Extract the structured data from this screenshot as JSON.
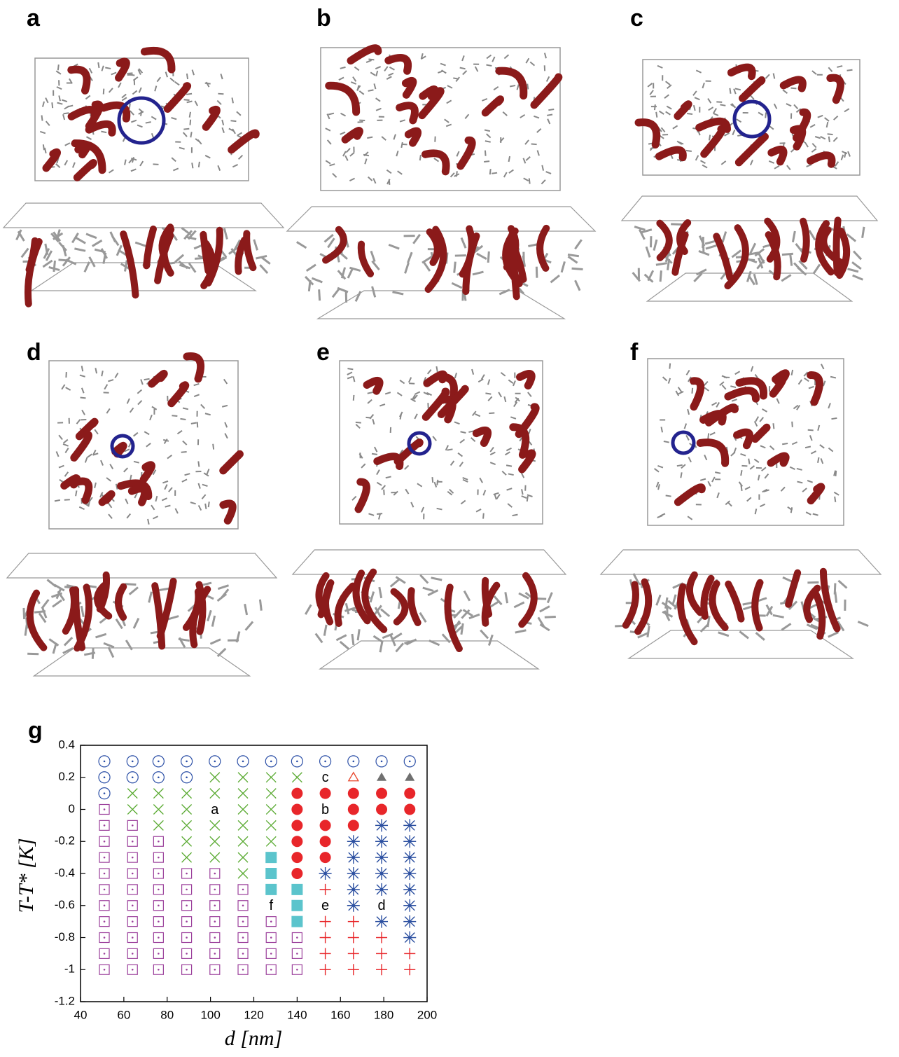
{
  "panels": [
    {
      "label": "a"
    },
    {
      "label": "b"
    },
    {
      "label": "c"
    },
    {
      "label": "d"
    },
    {
      "label": "e"
    },
    {
      "label": "f"
    }
  ],
  "chart_data": {
    "type": "scatter",
    "panel_label": "g",
    "xlabel": "d [nm]",
    "ylabel": "T-T* [K]",
    "xlim": [
      40,
      200
    ],
    "ylim": [
      -1.2,
      0.4
    ],
    "xticks": [
      40,
      60,
      80,
      100,
      120,
      140,
      160,
      180,
      200
    ],
    "yticks": [
      0.4,
      0.2,
      0,
      -0.2,
      -0.4,
      -0.6,
      -0.8,
      -1,
      -1.2
    ],
    "series": [
      {
        "marker": "circle-dot",
        "color": "#2a4ea6",
        "x": [
          51,
          64,
          76,
          89,
          102,
          115,
          128,
          140,
          153,
          166,
          179,
          192,
          51,
          64,
          76,
          89,
          51
        ],
        "values": [
          0.3,
          0.3,
          0.3,
          0.3,
          0.3,
          0.3,
          0.3,
          0.3,
          0.3,
          0.3,
          0.3,
          0.3,
          0.2,
          0.2,
          0.2,
          0.2,
          0.1
        ]
      },
      {
        "marker": "cross",
        "color": "#5aaa32",
        "x": [
          102,
          115,
          128,
          140,
          64,
          76,
          89,
          102,
          115,
          128,
          64,
          76,
          89,
          115,
          128,
          76,
          89,
          102,
          115,
          128,
          89,
          102,
          115,
          128,
          89,
          102,
          115,
          115
        ],
        "values": [
          0.2,
          0.2,
          0.2,
          0.2,
          0.1,
          0.1,
          0.1,
          0.1,
          0.1,
          0.1,
          0,
          0,
          0,
          0,
          0,
          -0.1,
          -0.1,
          -0.1,
          -0.1,
          -0.1,
          -0.2,
          -0.2,
          -0.2,
          -0.2,
          -0.3,
          -0.3,
          -0.3,
          -0.4
        ]
      },
      {
        "marker": "square-dot",
        "color": "#9b3f9b",
        "x": [
          51,
          51,
          64,
          51,
          64,
          76,
          51,
          64,
          76,
          51,
          64,
          76,
          89,
          102,
          51,
          64,
          76,
          89,
          102,
          115,
          51,
          64,
          76,
          89,
          102,
          115,
          51,
          64,
          76,
          89,
          102,
          115,
          128,
          51,
          64,
          76,
          89,
          102,
          115,
          128,
          140,
          51,
          64,
          76,
          89,
          102,
          115,
          128,
          140,
          51,
          64,
          76,
          89,
          102,
          115,
          128,
          140
        ],
        "values": [
          0,
          -0.1,
          -0.1,
          -0.2,
          -0.2,
          -0.2,
          -0.3,
          -0.3,
          -0.3,
          -0.4,
          -0.4,
          -0.4,
          -0.4,
          -0.4,
          -0.5,
          -0.5,
          -0.5,
          -0.5,
          -0.5,
          -0.5,
          -0.6,
          -0.6,
          -0.6,
          -0.6,
          -0.6,
          -0.6,
          -0.7,
          -0.7,
          -0.7,
          -0.7,
          -0.7,
          -0.7,
          -0.7,
          -0.8,
          -0.8,
          -0.8,
          -0.8,
          -0.8,
          -0.8,
          -0.8,
          -0.8,
          -0.9,
          -0.9,
          -0.9,
          -0.9,
          -0.9,
          -0.9,
          -0.9,
          -0.9,
          -1,
          -1,
          -1,
          -1,
          -1,
          -1,
          -1,
          -1
        ]
      },
      {
        "marker": "disc",
        "color": "#e8262a",
        "x": [
          140,
          153,
          166,
          179,
          192,
          140,
          166,
          179,
          192,
          140,
          153,
          166,
          140,
          153,
          140,
          153,
          140
        ],
        "values": [
          0.1,
          0.1,
          0.1,
          0.1,
          0.1,
          0,
          0,
          0,
          0,
          -0.1,
          -0.1,
          -0.1,
          -0.2,
          -0.2,
          -0.3,
          -0.3,
          -0.4
        ]
      },
      {
        "marker": "asterisk",
        "color": "#2b4fa0",
        "x": [
          179,
          192,
          166,
          179,
          192,
          166,
          179,
          192,
          153,
          166,
          179,
          192,
          166,
          179,
          192,
          166,
          192,
          179,
          192,
          192
        ],
        "values": [
          -0.1,
          -0.1,
          -0.2,
          -0.2,
          -0.2,
          -0.3,
          -0.3,
          -0.3,
          -0.4,
          -0.4,
          -0.4,
          -0.4,
          -0.5,
          -0.5,
          -0.5,
          -0.6,
          -0.6,
          -0.7,
          -0.7,
          -0.8
        ]
      },
      {
        "marker": "plus",
        "color": "#e8262a",
        "x": [
          153,
          153,
          166,
          153,
          166,
          179,
          153,
          166,
          179,
          192,
          153,
          166,
          179,
          192
        ],
        "values": [
          -0.5,
          -0.7,
          -0.7,
          -0.8,
          -0.8,
          -0.8,
          -0.9,
          -0.9,
          -0.9,
          -0.9,
          -1,
          -1,
          -1,
          -1
        ]
      },
      {
        "marker": "square",
        "color": "#5bc4cc",
        "x": [
          128,
          128,
          128,
          140,
          140,
          140
        ],
        "values": [
          -0.3,
          -0.4,
          -0.5,
          -0.5,
          -0.6,
          -0.7
        ]
      },
      {
        "marker": "triangle-open",
        "color": "#e8452a",
        "x": [
          166
        ],
        "values": [
          0.2
        ]
      },
      {
        "marker": "triangle",
        "color": "#707070",
        "x": [
          179,
          192
        ],
        "values": [
          0.2,
          0.2
        ]
      }
    ],
    "annotations": [
      {
        "text": "a",
        "x": 102,
        "y": 0
      },
      {
        "text": "b",
        "x": 153,
        "y": 0
      },
      {
        "text": "c",
        "x": 153,
        "y": 0.2
      },
      {
        "text": "d",
        "x": 179,
        "y": -0.6
      },
      {
        "text": "e",
        "x": 153,
        "y": -0.6
      },
      {
        "text": "f",
        "x": 128,
        "y": -0.6
      }
    ]
  }
}
